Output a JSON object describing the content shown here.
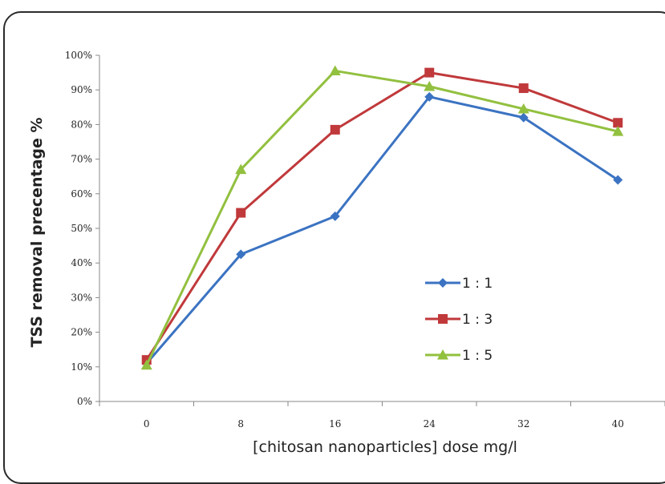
{
  "chart_data": {
    "type": "line",
    "title": "",
    "xlabel": "[chitosan nanoparticles] dose mg/l",
    "ylabel": "TSS removal precentage %",
    "x": [
      0,
      8,
      16,
      24,
      32,
      40
    ],
    "x_tick_labels": [
      "0",
      "8",
      "16",
      "24",
      "32",
      "40"
    ],
    "y_tick_labels": [
      "0%",
      "10%",
      "20%",
      "30%",
      "40%",
      "50%",
      "60%",
      "70%",
      "80%",
      "90%",
      "100%"
    ],
    "ylim": [
      0,
      100
    ],
    "grid": false,
    "legend_position": "center-right",
    "series": [
      {
        "name": "1 : 1",
        "marker": "diamond",
        "color": "#3b73c2",
        "values": [
          11,
          42.5,
          53.5,
          88,
          82,
          64
        ]
      },
      {
        "name": "1 : 3",
        "marker": "square",
        "color": "#c0393b",
        "values": [
          12,
          54.5,
          78.5,
          95,
          90.5,
          80.5
        ]
      },
      {
        "name": "1 : 5",
        "marker": "triangle",
        "color": "#92c03f",
        "values": [
          10.5,
          67,
          95.5,
          91,
          84.5,
          78
        ]
      }
    ]
  }
}
